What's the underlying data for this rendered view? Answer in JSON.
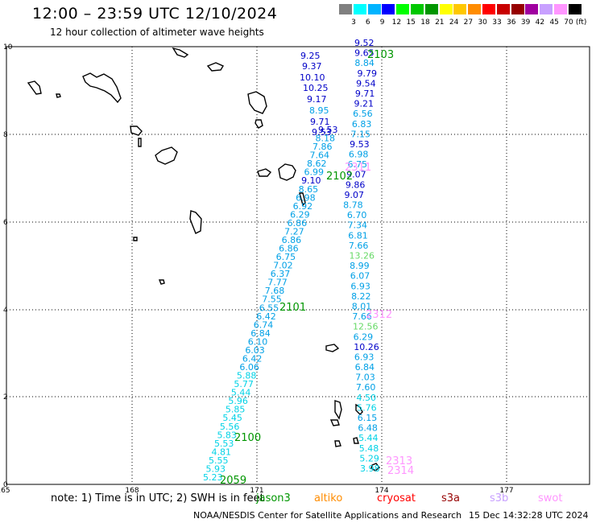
{
  "header": {
    "title": "12:00 – 23:59 UTC 12/10/2024",
    "subtitle": "12 hour collection of altimeter wave heights"
  },
  "legend": {
    "unit": "(ft)",
    "bins": [
      {
        "label": "3",
        "color": "#808080"
      },
      {
        "label": "6",
        "color": "#00ffff"
      },
      {
        "label": "9",
        "color": "#00b4ff"
      },
      {
        "label": "12",
        "color": "#0000ff"
      },
      {
        "label": "15",
        "color": "#00ff00"
      },
      {
        "label": "18",
        "color": "#00c800"
      },
      {
        "label": "21",
        "color": "#009600"
      },
      {
        "label": "24",
        "color": "#ffff00"
      },
      {
        "label": "27",
        "color": "#ffc800"
      },
      {
        "label": "30",
        "color": "#ff8c00"
      },
      {
        "label": "33",
        "color": "#ff0000"
      },
      {
        "label": "36",
        "color": "#c80000"
      },
      {
        "label": "39",
        "color": "#960000"
      },
      {
        "label": "42",
        "color": "#a000a0"
      },
      {
        "label": "45",
        "color": "#c8a0ff"
      },
      {
        "label": "70",
        "color": "#ff96ff"
      },
      {
        "label": "",
        "color": "#000000"
      }
    ]
  },
  "map": {
    "x_ticks": [
      "165",
      "168",
      "171",
      "174",
      "177"
    ],
    "y_ticks": [
      "10",
      "8",
      "6",
      "4",
      "2",
      "0"
    ],
    "grid": "dotted"
  },
  "tracks": {
    "pass_2100": {
      "label": "2100",
      "values": [
        "5.23",
        "5.93",
        "5.55",
        "4.81",
        "5.53",
        "5.83",
        "5.56",
        "5.45",
        "5.85",
        "5.96",
        "5.44",
        "5.77",
        "5.88",
        "6.06",
        "6.42",
        "6.03",
        "6.10",
        "6.84",
        "6.74",
        "6.42",
        "6.55",
        "7.55",
        "7.68",
        "7.77",
        "6.37",
        "7.02",
        "6.75",
        "6.86",
        "6.86",
        "7.27",
        "6.86",
        "6.29",
        "6.92",
        "6.98",
        "8.65",
        "9.10",
        "6.99",
        "8.62",
        "7.64",
        "7.86",
        "8.18",
        "9.53"
      ]
    },
    "pass_2101": {
      "label": "2101",
      "values": [
        "3.98",
        "5.29",
        "5.48",
        "5.44",
        "6.48",
        "6.15",
        "5.76",
        "4.50",
        "7.60",
        "7.03",
        "6.84",
        "6.93",
        "10.26",
        "6.29",
        "12.56",
        "7.66",
        "8.01",
        "8.22",
        "6.93",
        "6.07",
        "8.99",
        "13.26",
        "7.66",
        "6.81",
        "7.34",
        "6.70",
        "8.78",
        "9.07",
        "9.86",
        "9.07",
        "6.75",
        "6.98",
        "9.53",
        "7.15",
        "6.83",
        "6.56",
        "9.21",
        "9.71",
        "9.54",
        "9.79",
        "8.84",
        "9.65",
        "9.52"
      ]
    },
    "pass_2103_cluster": {
      "values": [
        "9.25",
        "9.37",
        "10.10",
        "10.25",
        "9.17",
        "8.95",
        "9.71",
        "9.53"
      ]
    },
    "pass_labels": [
      "2059",
      "2100",
      "2101",
      "2102",
      "2103",
      "2311",
      "2312",
      "2313",
      "2314"
    ]
  },
  "footer": {
    "note": "note:  1) Time is in UTC; 2) SWH is in feet",
    "satellites": [
      {
        "name": "jason3",
        "color": "#009600"
      },
      {
        "name": "altiko",
        "color": "#ff8c00"
      },
      {
        "name": "cryosat",
        "color": "#ff0000"
      },
      {
        "name": "s3a",
        "color": "#960000"
      },
      {
        "name": "s3b",
        "color": "#c8a0ff"
      },
      {
        "name": "swot",
        "color": "#ff96ff"
      }
    ],
    "credit": "NOAA/NESDIS Center for Satellite Applications and Research",
    "timestamp": "15 Dec 14:32:28 UTC 2024"
  }
}
